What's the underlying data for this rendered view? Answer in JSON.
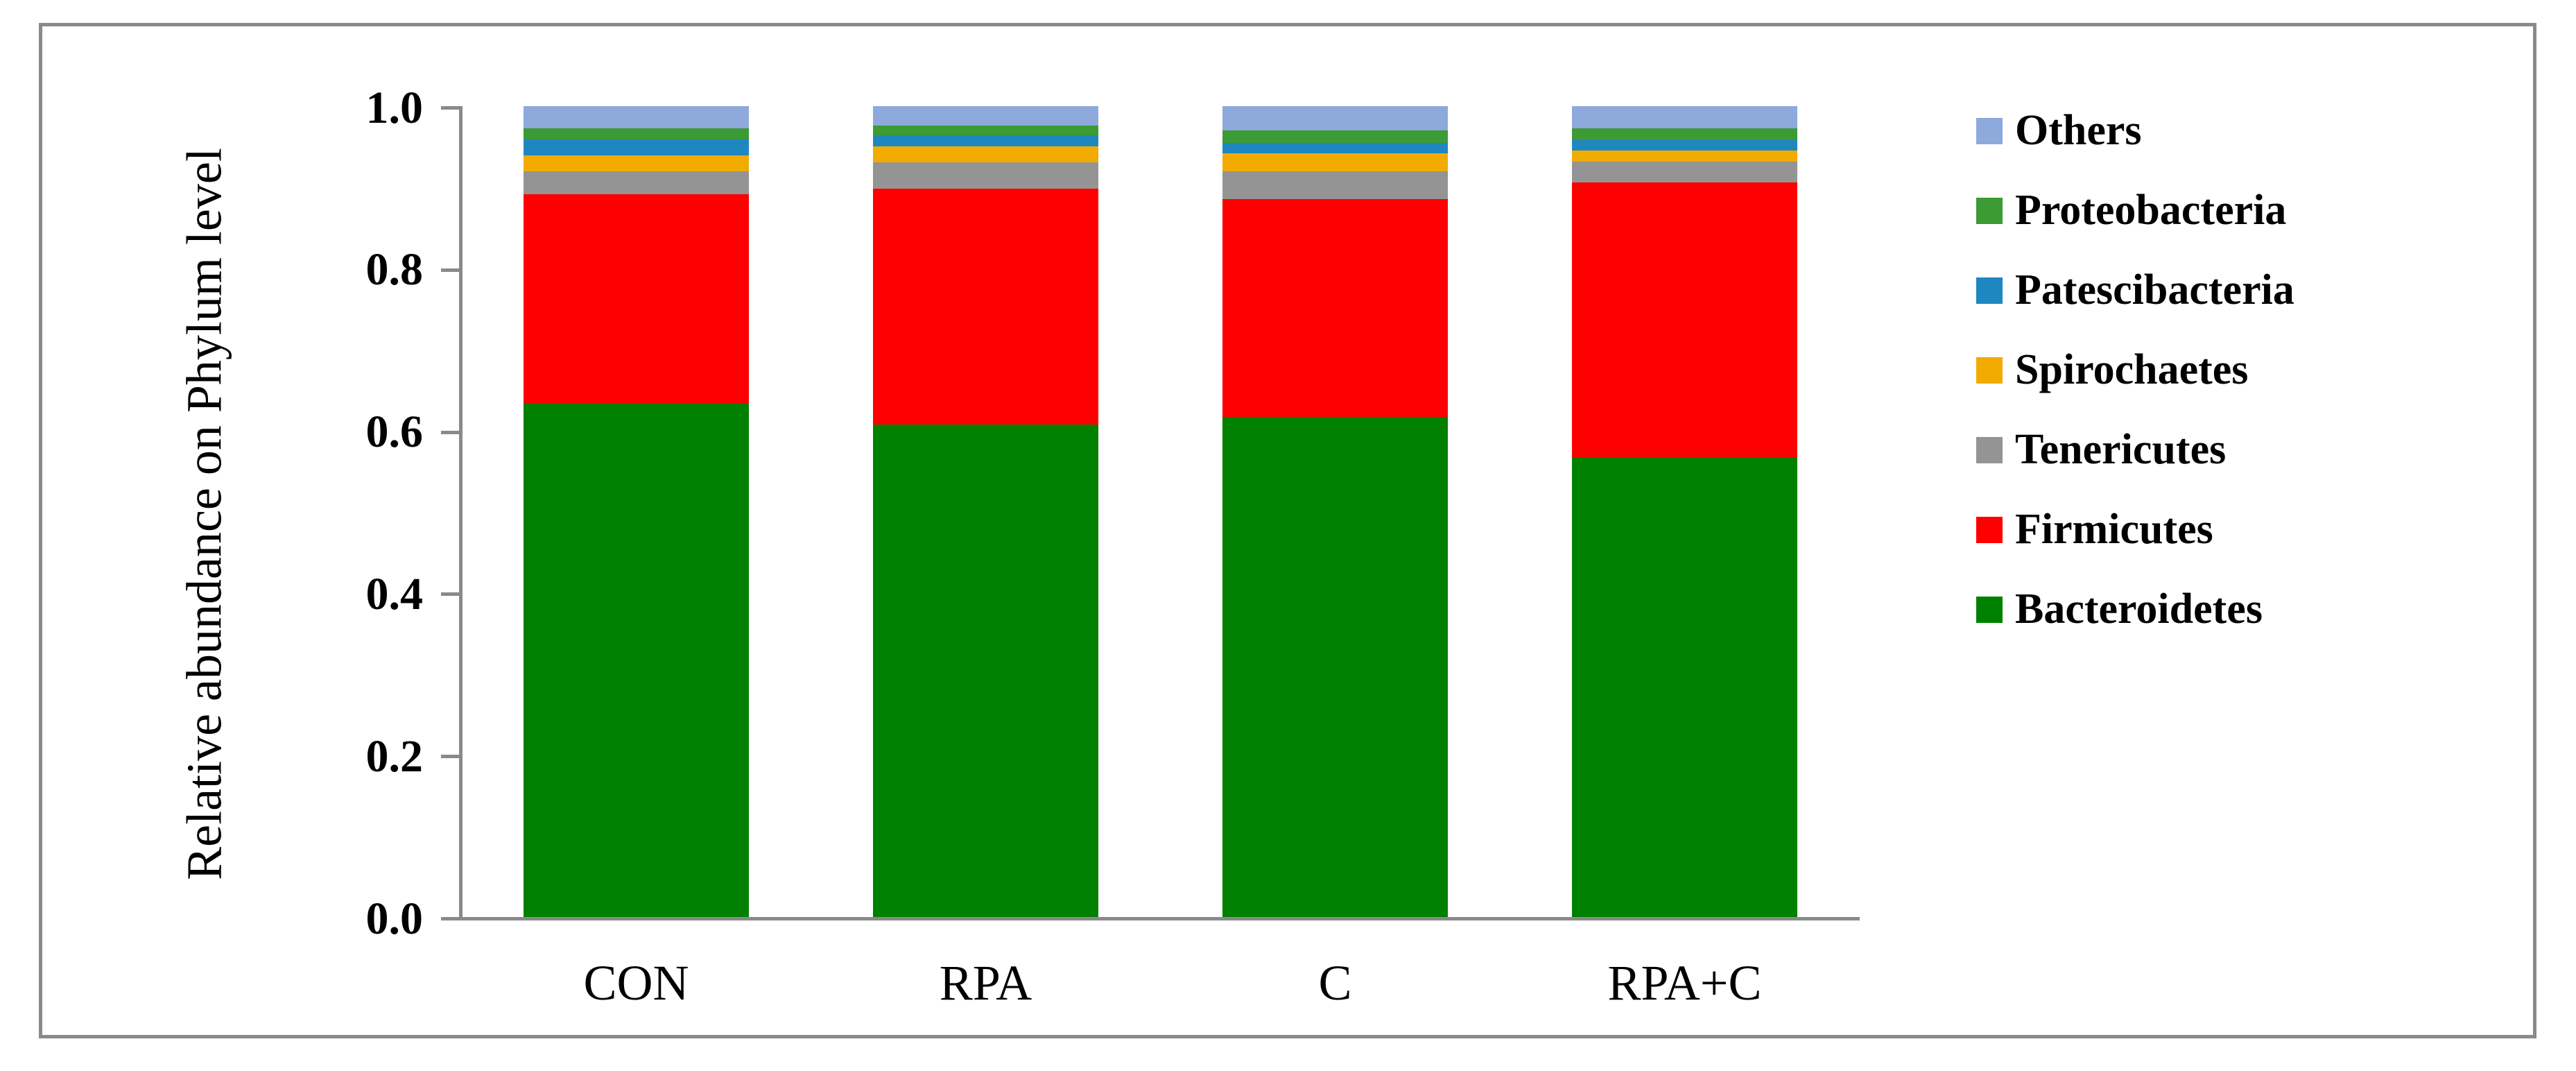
{
  "figure": {
    "frame_color": "#8A8A8A",
    "axis_color": "#8A8A8A",
    "background": "#FFFFFF"
  },
  "chart_data": {
    "type": "bar",
    "stacked": true,
    "title": "",
    "xlabel": "",
    "ylabel": "Relative abundance on Phylum level",
    "categories": [
      "CON",
      "RPA",
      "C",
      "RPA+C"
    ],
    "ylim": [
      0.0,
      1.0
    ],
    "yticks": [
      0.0,
      0.2,
      0.4,
      0.6,
      0.8,
      1.0
    ],
    "ytick_labels": [
      "0.0",
      "0.2",
      "0.4",
      "0.6",
      "0.8",
      "1.0"
    ],
    "grid": false,
    "legend_position": "right",
    "series": [
      {
        "name": "Bacteroidetes",
        "color": "#008000",
        "values": [
          0.634,
          0.607,
          0.617,
          0.566
        ]
      },
      {
        "name": "Firmicutes",
        "color": "#FF0000",
        "values": [
          0.257,
          0.291,
          0.268,
          0.34
        ]
      },
      {
        "name": "Tenericutes",
        "color": "#949494",
        "values": [
          0.029,
          0.033,
          0.035,
          0.026
        ]
      },
      {
        "name": "Spirochaetes",
        "color": "#F2AB00",
        "values": [
          0.019,
          0.019,
          0.022,
          0.013
        ]
      },
      {
        "name": "Patescibacteria",
        "color": "#1E87C0",
        "values": [
          0.02,
          0.014,
          0.013,
          0.013
        ]
      },
      {
        "name": "Proteobacteria",
        "color": "#3C9B35",
        "values": [
          0.014,
          0.012,
          0.015,
          0.015
        ]
      },
      {
        "name": "Others",
        "color": "#8EA9DB",
        "values": [
          0.027,
          0.024,
          0.03,
          0.027
        ]
      }
    ],
    "legend_top_to_bottom": [
      "Others",
      "Proteobacteria",
      "Patescibacteria",
      "Spirochaetes",
      "Tenericutes",
      "Firmicutes",
      "Bacteroidetes"
    ]
  }
}
